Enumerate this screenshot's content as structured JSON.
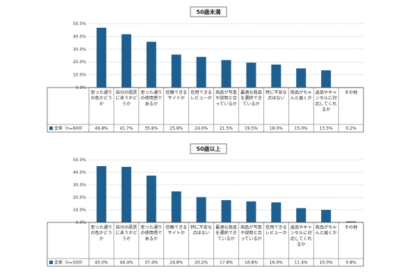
{
  "colors": {
    "bar": "#1f5f8f",
    "grid": "#9a9a9a",
    "border": "#555555",
    "text": "#222222"
  },
  "chart_data": [
    {
      "type": "bar",
      "title": "50歳未満",
      "legend": "全体（n=600）",
      "y_ticks": [
        "50.0%",
        "40.0%",
        "30.0%",
        "20.0%",
        "10.0%",
        "0.0%"
      ],
      "ylim": [
        0,
        50
      ],
      "categories": [
        "思った通りの色かどうか",
        "自分の肌質にあうかどうか",
        "思った通りの使用感であるか",
        "信頼できるサイトか",
        "信用できるレビューか",
        "商品が写真や説明と合っているか",
        "最適な商品を選択できているか",
        "特に不安な点はない",
        "商品がちゃんと届くか",
        "返品やキャンセルに対応してくれるか",
        "その他"
      ],
      "values": [
        46.8,
        41.7,
        35.8,
        25.8,
        24.0,
        21.5,
        19.5,
        18.0,
        15.0,
        13.5,
        0.2
      ],
      "value_labels": [
        "46.8%",
        "41.7%",
        "35.8%",
        "25.8%",
        "24.0%",
        "21.5%",
        "19.5%",
        "18.0%",
        "15.0%",
        "13.5%",
        "0.2%"
      ]
    },
    {
      "type": "bar",
      "title": "50歳以上",
      "legend": "全体（n=500）",
      "y_ticks": [
        "50.0%",
        "40.0%",
        "30.0%",
        "20.0%",
        "10.0%",
        "0.0%"
      ],
      "ylim": [
        0,
        50
      ],
      "categories": [
        "思った通りの色かどうか",
        "自分の肌質にあうかどうか",
        "思った通りの使用感であるか",
        "信頼できるサイトか",
        "特に不安な点はない",
        "最適な商品を選択できているか",
        "商品が写真や説明と合っているか",
        "信用できるレビューか",
        "返品やキャンセルに対応してくれるか",
        "商品がちゃんと届くか",
        "その他"
      ],
      "values": [
        45.0,
        44.4,
        37.4,
        24.8,
        20.2,
        17.8,
        16.8,
        16.0,
        11.4,
        10.0,
        0.8
      ],
      "value_labels": [
        "45.0%",
        "44.4%",
        "37.4%",
        "24.8%",
        "20.2%",
        "17.8%",
        "16.8%",
        "16.0%",
        "11.4%",
        "10.0%",
        "0.8%"
      ]
    }
  ]
}
